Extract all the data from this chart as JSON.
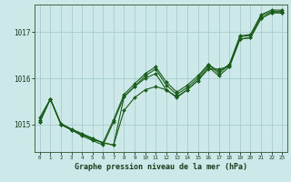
{
  "title": "Graphe pression niveau de la mer (hPa)",
  "bg_color": "#cce8e8",
  "grid_color": "#aacccc",
  "line_color": "#1a5c1a",
  "xlim": [
    -0.5,
    23.5
  ],
  "ylim": [
    1014.4,
    1017.6
  ],
  "yticks": [
    1015,
    1016,
    1017
  ],
  "xticks": [
    0,
    1,
    2,
    3,
    4,
    5,
    6,
    7,
    8,
    9,
    10,
    11,
    12,
    13,
    14,
    15,
    16,
    17,
    18,
    19,
    20,
    21,
    22,
    23
  ],
  "series": [
    [
      1015.05,
      1015.55,
      1015.0,
      1014.88,
      1014.78,
      1014.68,
      1014.6,
      1014.55,
      1015.3,
      1015.58,
      1015.75,
      1015.82,
      1015.75,
      1015.58,
      1015.75,
      1015.95,
      1016.2,
      1016.2,
      1016.25,
      1016.85,
      1016.88,
      1017.3,
      1017.42,
      1017.42
    ],
    [
      1015.05,
      1015.55,
      1015.0,
      1014.88,
      1014.78,
      1014.68,
      1014.6,
      1014.55,
      1015.6,
      1015.82,
      1016.0,
      1016.1,
      1015.75,
      1015.6,
      1015.75,
      1015.95,
      1016.25,
      1016.05,
      1016.25,
      1016.85,
      1016.88,
      1017.3,
      1017.42,
      1017.42
    ],
    [
      1015.1,
      1015.55,
      1015.0,
      1014.88,
      1014.75,
      1014.65,
      1014.55,
      1015.05,
      1015.6,
      1015.82,
      1016.05,
      1016.2,
      1015.85,
      1015.65,
      1015.8,
      1016.0,
      1016.3,
      1016.1,
      1016.3,
      1016.9,
      1016.93,
      1017.35,
      1017.45,
      1017.45
    ],
    [
      1015.15,
      1015.55,
      1015.02,
      1014.9,
      1014.8,
      1014.7,
      1014.6,
      1015.1,
      1015.65,
      1015.88,
      1016.1,
      1016.25,
      1015.92,
      1015.7,
      1015.85,
      1016.05,
      1016.3,
      1016.15,
      1016.3,
      1016.92,
      1016.95,
      1017.38,
      1017.48,
      1017.48
    ]
  ]
}
